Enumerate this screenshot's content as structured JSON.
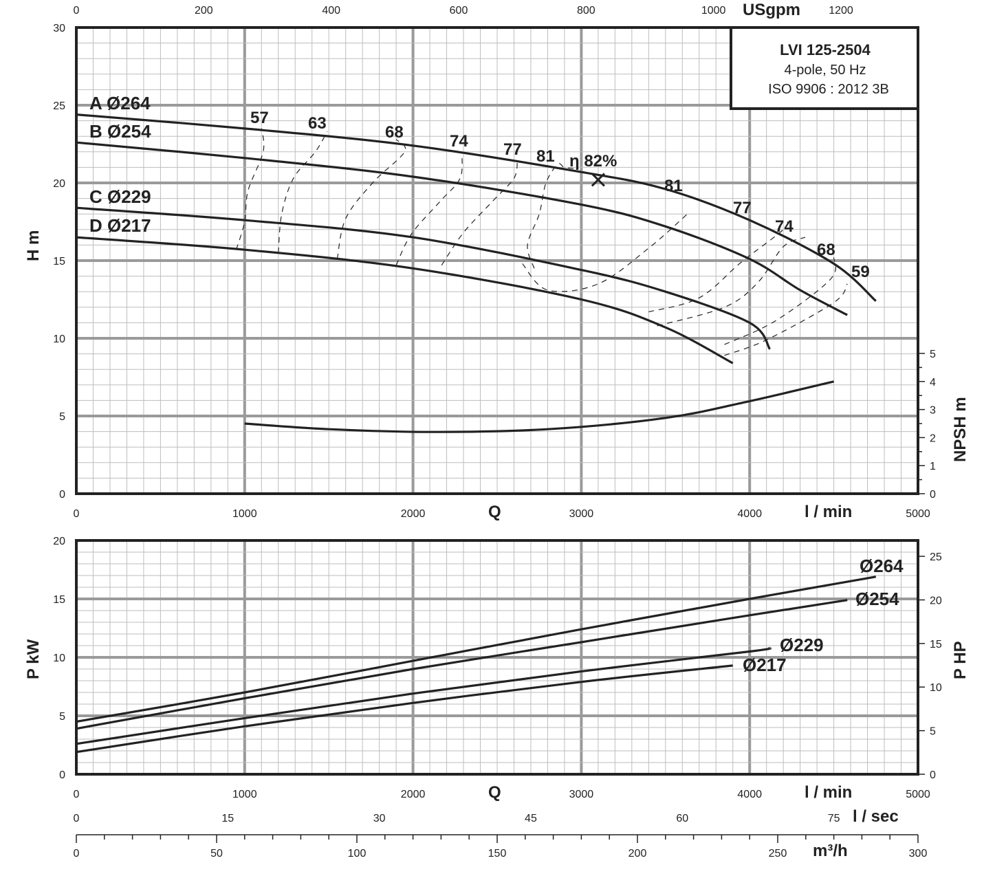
{
  "chart_data": [
    {
      "type": "line",
      "title": "LVI 125-2504",
      "subtitle": [
        "4-pole, 50 Hz",
        "ISO 9906 : 2012 3B"
      ],
      "x_label": "Q",
      "x_unit": "l / min",
      "xlim": [
        0,
        5000
      ],
      "x_ticks": [
        0,
        1000,
        2000,
        3000,
        4000,
        5000
      ],
      "top_axis": {
        "label": "USgpm",
        "ticks": [
          0,
          200,
          400,
          600,
          800,
          1000,
          1200
        ]
      },
      "ylabel": "H m",
      "ylim": [
        0,
        30
      ],
      "y_ticks": [
        0,
        5,
        10,
        15,
        20,
        25,
        30
      ],
      "right_axis": {
        "label": "NPSH m",
        "ticks": [
          0,
          1,
          2,
          3,
          4,
          5
        ]
      },
      "grid": true,
      "series": [
        {
          "name": "A Ø264",
          "points": [
            [
              0,
              24.4
            ],
            [
              1000,
              23.5
            ],
            [
              2000,
              22.4
            ],
            [
              3000,
              20.7
            ],
            [
              3500,
              19.6
            ],
            [
              4000,
              17.6
            ],
            [
              4500,
              14.8
            ],
            [
              4750,
              12.4
            ]
          ]
        },
        {
          "name": "B Ø254",
          "points": [
            [
              0,
              22.6
            ],
            [
              1000,
              21.6
            ],
            [
              2000,
              20.4
            ],
            [
              3000,
              18.6
            ],
            [
              3500,
              17.2
            ],
            [
              4000,
              15.1
            ],
            [
              4300,
              13.1
            ],
            [
              4580,
              11.5
            ]
          ]
        },
        {
          "name": "C Ø229",
          "points": [
            [
              0,
              18.4
            ],
            [
              1000,
              17.6
            ],
            [
              2000,
              16.5
            ],
            [
              3000,
              14.4
            ],
            [
              3500,
              13.0
            ],
            [
              4000,
              11.0
            ],
            [
              4120,
              9.3
            ]
          ]
        },
        {
          "name": "D Ø217",
          "points": [
            [
              0,
              16.5
            ],
            [
              1000,
              15.7
            ],
            [
              2000,
              14.5
            ],
            [
              3000,
              12.5
            ],
            [
              3500,
              10.7
            ],
            [
              3900,
              8.4
            ]
          ]
        }
      ],
      "npsh": {
        "points": [
          [
            1000,
            2.5
          ],
          [
            1500,
            2.3
          ],
          [
            2100,
            2.2
          ],
          [
            2800,
            2.3
          ],
          [
            3500,
            2.7
          ],
          [
            4000,
            3.3
          ],
          [
            4500,
            4.0
          ]
        ]
      },
      "efficiency_labels": [
        "57",
        "63",
        "68",
        "74",
        "77",
        "81",
        "η 82%",
        "81",
        "77",
        "74",
        "68",
        "59"
      ],
      "bep": {
        "x": 3100,
        "y": 20.2
      },
      "iso_efficiency": [
        [
          [
            950,
            15.7
          ],
          [
            1000,
            17.5
          ],
          [
            1020,
            19.5
          ],
          [
            1110,
            22.0
          ],
          [
            1100,
            23.5
          ]
        ],
        [
          [
            1200,
            15.5
          ],
          [
            1220,
            18.0
          ],
          [
            1290,
            20.3
          ],
          [
            1420,
            22.0
          ],
          [
            1490,
            23.3
          ]
        ],
        [
          [
            1550,
            15.1
          ],
          [
            1600,
            17.7
          ],
          [
            1760,
            20.0
          ],
          [
            1950,
            22.0
          ],
          [
            1900,
            22.8
          ]
        ],
        [
          [
            1900,
            14.7
          ],
          [
            1990,
            16.7
          ],
          [
            2160,
            18.8
          ],
          [
            2280,
            20.3
          ],
          [
            2290,
            22.0
          ]
        ],
        [
          [
            2170,
            14.7
          ],
          [
            2300,
            16.8
          ],
          [
            2480,
            18.9
          ],
          [
            2600,
            20.3
          ],
          [
            2620,
            21.4
          ]
        ],
        [
          [
            2720,
            14.5
          ],
          [
            2680,
            16.0
          ],
          [
            2750,
            18.0
          ],
          [
            2790,
            20.0
          ],
          [
            2860,
            21.2
          ],
          [
            2900,
            21.0
          ],
          [
            2980,
            20.9
          ]
        ],
        [
          [
            2650,
            14.8
          ],
          [
            2800,
            13.1
          ],
          [
            3100,
            13.5
          ],
          [
            3400,
            15.8
          ],
          [
            3640,
            18.1
          ]
        ],
        [
          [
            3400,
            11.7
          ],
          [
            3700,
            12.6
          ],
          [
            3950,
            14.9
          ],
          [
            4200,
            17.0
          ],
          [
            4220,
            17.7
          ]
        ],
        [
          [
            3450,
            10.8
          ],
          [
            3850,
            12.0
          ],
          [
            4050,
            13.6
          ],
          [
            4200,
            15.9
          ],
          [
            4330,
            16.5
          ]
        ],
        [
          [
            3850,
            9.6
          ],
          [
            4150,
            11.1
          ],
          [
            4480,
            13.8
          ],
          [
            4500,
            15.2
          ]
        ],
        [
          [
            3850,
            8.9
          ],
          [
            4100,
            9.9
          ],
          [
            4500,
            12.3
          ],
          [
            4580,
            13.5
          ]
        ]
      ],
      "series_labels": [
        "A Ø264",
        "B Ø254",
        "C Ø229",
        "D Ø217"
      ]
    },
    {
      "type": "line",
      "x_label": "Q",
      "x_unit": "l / min",
      "xlim": [
        0,
        5000
      ],
      "x_ticks": [
        0,
        1000,
        2000,
        3000,
        4000,
        5000
      ],
      "ylabel": "P kW",
      "ylim": [
        0,
        20
      ],
      "y_ticks": [
        0,
        5,
        10,
        15,
        20
      ],
      "right_axis": {
        "label": "P HP",
        "ticks": [
          0,
          5,
          10,
          15,
          20,
          25
        ]
      },
      "grid": true,
      "series": [
        {
          "name": "Ø264",
          "points": [
            [
              0,
              4.5
            ],
            [
              1000,
              7.0
            ],
            [
              2000,
              9.7
            ],
            [
              3000,
              12.4
            ],
            [
              4000,
              15.0
            ],
            [
              4750,
              16.9
            ]
          ]
        },
        {
          "name": "Ø254",
          "points": [
            [
              0,
              3.9
            ],
            [
              1000,
              6.5
            ],
            [
              2000,
              9.0
            ],
            [
              3000,
              11.3
            ],
            [
              4000,
              13.6
            ],
            [
              4580,
              14.9
            ]
          ]
        },
        {
          "name": "Ø229",
          "points": [
            [
              0,
              2.6
            ],
            [
              1000,
              4.8
            ],
            [
              2000,
              6.9
            ],
            [
              3000,
              8.8
            ],
            [
              4000,
              10.5
            ],
            [
              4120,
              10.8
            ]
          ]
        },
        {
          "name": "Ø217",
          "points": [
            [
              0,
              1.9
            ],
            [
              1000,
              4.1
            ],
            [
              2000,
              6.1
            ],
            [
              3000,
              7.9
            ],
            [
              3900,
              9.3
            ]
          ]
        }
      ],
      "extra_axes": [
        {
          "label": "l / sec",
          "ticks": [
            0,
            15,
            30,
            45,
            60,
            75
          ]
        },
        {
          "label": "m³/h",
          "ticks": [
            0,
            50,
            100,
            150,
            200,
            250,
            300
          ]
        }
      ]
    }
  ]
}
